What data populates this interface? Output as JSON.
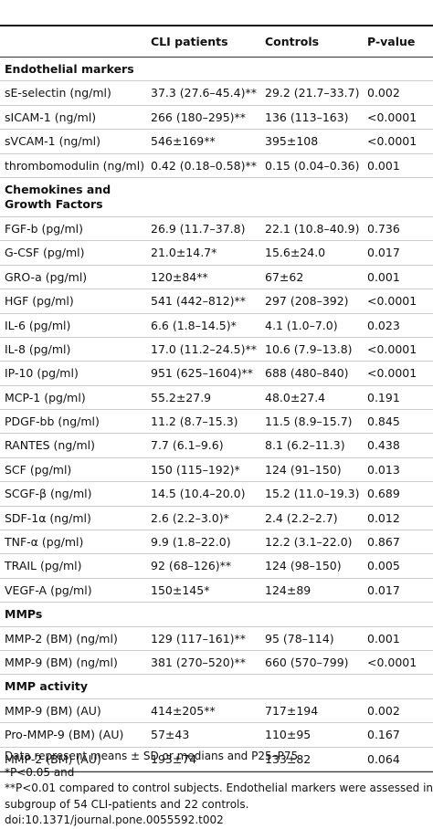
{
  "header": {
    "columns": [
      "",
      "CLI patients",
      "Controls",
      "P-value"
    ]
  },
  "sections": [
    {
      "title": "Endothelial markers",
      "rows": [
        [
          "sE-selectin (ng/ml)",
          "37.3 (27.6–45.4)**",
          "29.2 (21.7–33.7)",
          "0.002"
        ],
        [
          "sICAM-1 (ng/ml)",
          "266 (180–295)**",
          "136 (113–163)",
          "<0.0001"
        ],
        [
          "sVCAM-1 (ng/ml)",
          "546±169**",
          "395±108",
          "<0.0001"
        ],
        [
          "thrombomodulin (ng/ml)",
          "0.42 (0.18–0.58)**",
          "0.15 (0.04–0.36)",
          "0.001"
        ]
      ]
    },
    {
      "title": "Chemokines and Growth Factors",
      "rows": [
        [
          "FGF-b (pg/ml)",
          "26.9 (11.7–37.8)",
          "22.1 (10.8–40.9)",
          "0.736"
        ],
        [
          "G-CSF (pg/ml)",
          "21.0±14.7*",
          "15.6±24.0",
          "0.017"
        ],
        [
          "GRO-a (pg/ml)",
          "120±84**",
          "67±62",
          "0.001"
        ],
        [
          "HGF (pg/ml)",
          "541 (442–812)**",
          "297 (208–392)",
          "<0.0001"
        ],
        [
          "IL-6 (pg/ml)",
          "6.6 (1.8–14.5)*",
          "4.1 (1.0–7.0)",
          "0.023"
        ],
        [
          "IL-8 (pg/ml)",
          "17.0 (11.2–24.5)**",
          "10.6 (7.9–13.8)",
          "<0.0001"
        ],
        [
          "IP-10 (pg/ml)",
          "951 (625–1604)**",
          "688 (480–840)",
          "<0.0001"
        ],
        [
          "MCP-1 (pg/ml)",
          "55.2±27.9",
          "48.0±27.4",
          "0.191"
        ],
        [
          "PDGF-bb (ng/ml)",
          "11.2 (8.7–15.3)",
          "11.5 (8.9–15.7)",
          "0.845"
        ],
        [
          "RANTES (ng/ml)",
          "7.7 (6.1–9.6)",
          "8.1 (6.2–11.3)",
          "0.438"
        ],
        [
          "SCF (pg/ml)",
          "150 (115–192)*",
          "124 (91–150)",
          "0.013"
        ],
        [
          "SCGF-β (ng/ml)",
          "14.5 (10.4–20.0)",
          "15.2 (11.0–19.3)",
          "0.689"
        ],
        [
          "SDF-1α (ng/ml)",
          "2.6 (2.2–3.0)*",
          "2.4 (2.2–2.7)",
          "0.012"
        ],
        [
          "TNF-α (pg/ml)",
          "9.9 (1.8–22.0)",
          "12.2 (3.1–22.0)",
          "0.867"
        ],
        [
          "TRAIL (pg/ml)",
          "92 (68–126)**",
          "124 (98–150)",
          "0.005"
        ],
        [
          "VEGF-A (pg/ml)",
          "150±145*",
          "124±89",
          "0.017"
        ]
      ]
    },
    {
      "title": "MMPs",
      "rows": [
        [
          "MMP-2 (BM) (ng/ml)",
          "129 (117–161)**",
          "95 (78–114)",
          "0.001"
        ],
        [
          "MMP-9 (BM) (ng/ml)",
          "381 (270–520)**",
          "660 (570–799)",
          "<0.0001"
        ]
      ]
    },
    {
      "title": "MMP activity",
      "rows": [
        [
          "MMP-9 (BM) (AU)",
          "414±205**",
          "717±194",
          "0.002"
        ],
        [
          "Pro-MMP-9 (BM) (AU)",
          "57±43",
          "110±95",
          "0.167"
        ],
        [
          "MMP-2 (BM) (AU)",
          "193±74",
          "133±82",
          "0.064"
        ]
      ]
    }
  ],
  "footnotes": [
    "Data represent means ± SD or medians and P25–P75.",
    "*P<0.05 and",
    "**P<0.01 compared to control subjects. Endothelial markers were assessed in a",
    "subgroup of 54 CLI-patients and 22 controls.",
    "doi:10.1371/journal.pone.0055592.t002"
  ]
}
